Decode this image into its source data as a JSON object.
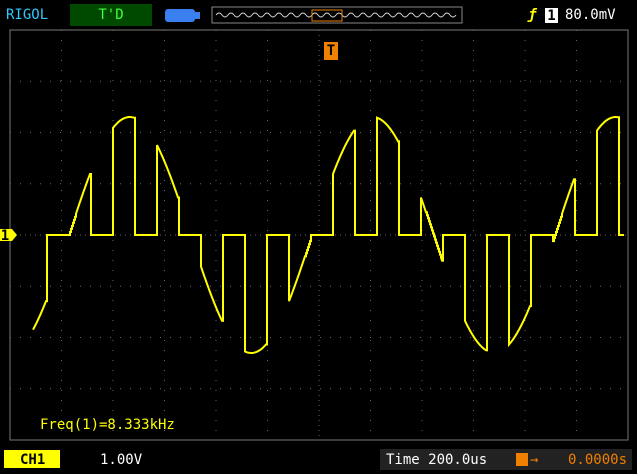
{
  "top_bar": {
    "brand": "RIGOL",
    "status": "T'D",
    "trigger_source": "1",
    "trigger_level": "80.0mV"
  },
  "markers": {
    "trigger_position": "T",
    "channel": "1"
  },
  "measurement": "Freq(1)=8.333kHz",
  "bottom_bar": {
    "channel": "CH1",
    "scale": "1.00V",
    "timebase": "Time 200.0us",
    "trigger_offset": "0.0000s"
  }
}
